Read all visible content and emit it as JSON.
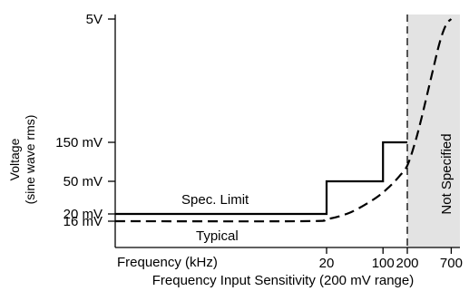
{
  "chart_data": {
    "type": "line",
    "xlabel": "Frequency (kHz)",
    "xlabel2": "Frequency Input Sensitivity (200 mV range)",
    "ylabel": [
      "Voltage",
      "(sine wave rms)"
    ],
    "x_scale": "log",
    "y_scale": "nonlinear (labeled ticks only)",
    "x_ticks": [
      {
        "value": 20,
        "label": "20"
      },
      {
        "value": 100,
        "label": "100"
      },
      {
        "value": 200,
        "label": "200"
      },
      {
        "value": 700,
        "label": "700"
      }
    ],
    "y_ticks": [
      {
        "value": 16,
        "unit": "mV",
        "label": "16 mV"
      },
      {
        "value": 20,
        "unit": "mV",
        "label": "20 mV"
      },
      {
        "value": 50,
        "unit": "mV",
        "label": "50 mV"
      },
      {
        "value": 150,
        "unit": "mV",
        "label": "150 mV"
      },
      {
        "value": 5000,
        "unit": "mV",
        "label": "5V"
      }
    ],
    "series": [
      {
        "name": "Spec. Limit",
        "style": "solid",
        "points": [
          [
            1,
            20
          ],
          [
            20,
            20
          ],
          [
            20,
            50
          ],
          [
            100,
            50
          ],
          [
            100,
            150
          ],
          [
            200,
            150
          ]
        ]
      },
      {
        "name": "Typical",
        "style": "dashed",
        "points": [
          [
            1,
            16
          ],
          [
            10,
            16
          ],
          [
            20,
            17
          ],
          [
            40,
            21
          ],
          [
            80,
            31
          ],
          [
            120,
            43
          ],
          [
            160,
            58
          ],
          [
            200,
            78
          ],
          [
            250,
            150
          ],
          [
            300,
            300
          ],
          [
            400,
            1000
          ],
          [
            500,
            2500
          ],
          [
            600,
            4200
          ],
          [
            700,
            5000
          ]
        ]
      }
    ],
    "annotations": [
      {
        "text": "Spec. Limit"
      },
      {
        "text": "Typical"
      },
      {
        "text": "Not Specified",
        "region_x": [
          200,
          760
        ],
        "fill": "#e3e3e3"
      }
    ],
    "divider_x": 200
  }
}
